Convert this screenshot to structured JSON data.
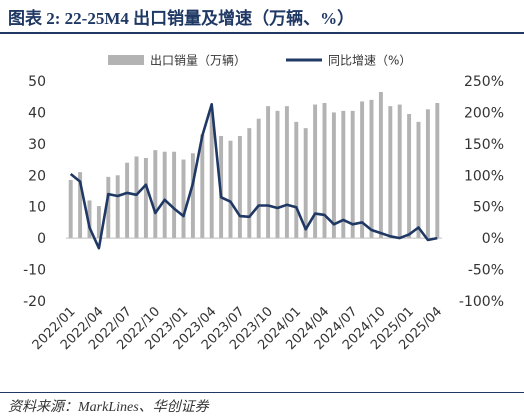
{
  "title": "图表 2:  22-25M4 出口销量及增速（万辆、%）",
  "source": "资料来源：MarkLines、华创证券",
  "colors": {
    "bar": "#b3b3b3",
    "line": "#1f3864",
    "text": "#333333"
  },
  "chart_data": {
    "type": "bar+line",
    "x": [
      "2022/01",
      "2022/02",
      "2022/03",
      "2022/04",
      "2022/05",
      "2022/06",
      "2022/07",
      "2022/08",
      "2022/09",
      "2022/10",
      "2022/11",
      "2022/12",
      "2023/01",
      "2023/02",
      "2023/03",
      "2023/04",
      "2023/05",
      "2023/06",
      "2023/07",
      "2023/08",
      "2023/09",
      "2023/10",
      "2023/11",
      "2023/12",
      "2024/01",
      "2024/02",
      "2024/03",
      "2024/04",
      "2024/05",
      "2024/06",
      "2024/07",
      "2024/08",
      "2024/09",
      "2024/10",
      "2024/11",
      "2024/12",
      "2025/01",
      "2025/02",
      "2025/03",
      "2025/04"
    ],
    "x_tick_labels": [
      "2022/01",
      "2022/04",
      "2022/07",
      "2022/10",
      "2023/01",
      "2023/04",
      "2023/07",
      "2023/10",
      "2024/01",
      "2024/04",
      "2024/07",
      "2024/10",
      "2025/01",
      "2025/04"
    ],
    "series": [
      {
        "name": "出口销量（万辆）",
        "type": "bar",
        "axis": "left",
        "values": [
          18.5,
          21,
          12,
          10.2,
          19.5,
          20,
          24,
          26,
          25.5,
          28,
          27.5,
          27.5,
          25,
          27,
          33,
          40,
          32.5,
          31,
          32.5,
          35,
          38,
          42,
          40.5,
          42,
          37,
          35,
          42.5,
          43,
          40,
          40.5,
          40.5,
          43.5,
          44,
          46.5,
          42,
          42.5,
          39.5,
          37,
          41,
          43
        ]
      },
      {
        "name": "同比增速（%）",
        "type": "line",
        "axis": "right",
        "values": [
          102,
          90,
          17,
          -16,
          70,
          67,
          72,
          69,
          85,
          40,
          61,
          47,
          35,
          87,
          163,
          213,
          65,
          58,
          35,
          34,
          52,
          52,
          48,
          53,
          49,
          14,
          39,
          37,
          22,
          29,
          22,
          25,
          13,
          8,
          3,
          0,
          6,
          17,
          -3,
          0
        ]
      }
    ],
    "left_axis": {
      "min": -20,
      "max": 50,
      "ticks": [
        -20,
        -10,
        0,
        10,
        20,
        30,
        40,
        50
      ]
    },
    "right_axis": {
      "min": -100,
      "max": 250,
      "ticks": [
        "-100%",
        "-50%",
        "0%",
        "50%",
        "100%",
        "150%",
        "200%",
        "250%"
      ]
    },
    "legend_position": "top",
    "grid": false
  }
}
